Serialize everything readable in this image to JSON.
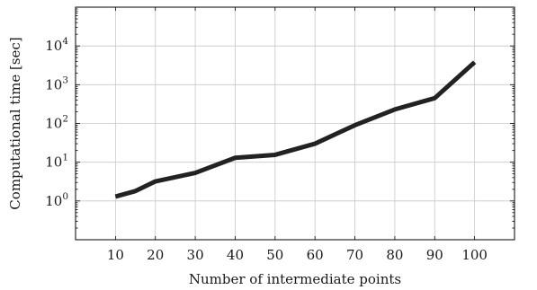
{
  "chart_data": {
    "type": "line",
    "title": "",
    "xlabel": "Number of intermediate points",
    "ylabel": "Computational time [sec]",
    "x_ticks": [
      10,
      20,
      30,
      40,
      50,
      60,
      70,
      80,
      90,
      100
    ],
    "xlim": [
      0,
      110
    ],
    "y_scale": "log",
    "y_ticks": [
      {
        "base": "10",
        "exp": "0",
        "value": 1
      },
      {
        "base": "10",
        "exp": "1",
        "value": 10
      },
      {
        "base": "10",
        "exp": "2",
        "value": 100
      },
      {
        "base": "10",
        "exp": "3",
        "value": 1000
      },
      {
        "base": "10",
        "exp": "4",
        "value": 10000
      }
    ],
    "ylim": [
      0.1,
      100000
    ],
    "grid": true,
    "legend": "none",
    "series": [
      {
        "color": "#222222",
        "x": [
          10,
          15,
          20,
          30,
          40,
          50,
          60,
          70,
          80,
          90,
          100
        ],
        "y": [
          1.3,
          1.8,
          3.2,
          5.3,
          13,
          15.5,
          30,
          90,
          230,
          450,
          3800
        ]
      }
    ]
  }
}
